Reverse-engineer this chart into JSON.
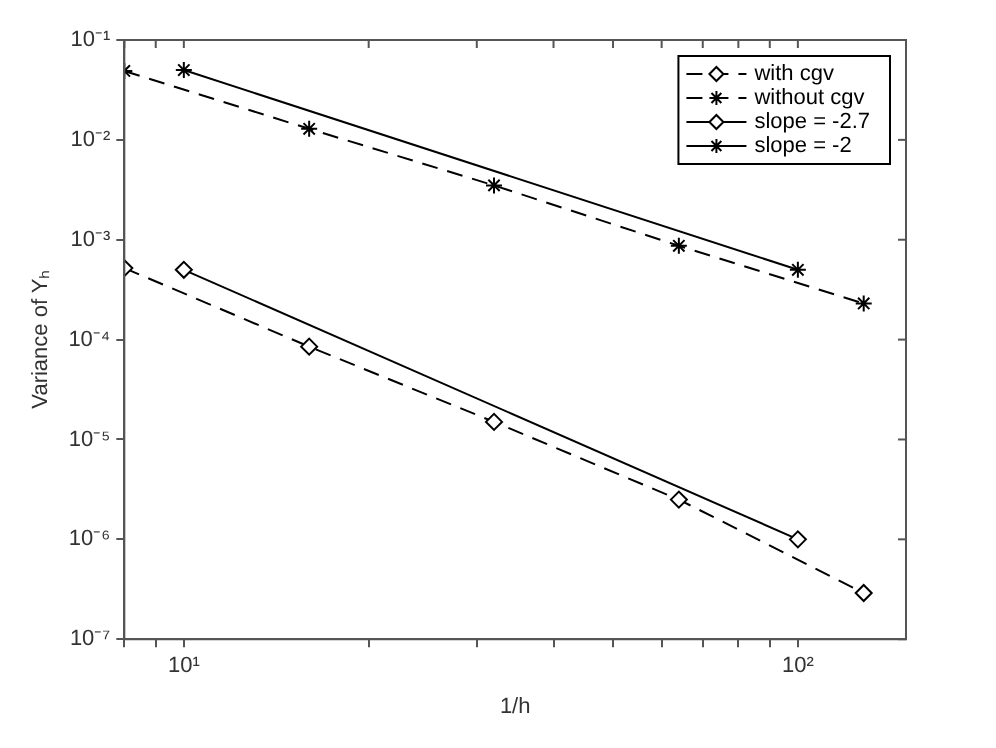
{
  "chart_data": {
    "type": "line",
    "xlabel": "1/h",
    "ylabel": "Variance of Yₕ",
    "log": "xy",
    "grid": false,
    "legend": "top right",
    "xlim": [
      8,
      150
    ],
    "ylim": [
      1e-07,
      0.1
    ],
    "xticks": [
      {
        "value": 8,
        "label": null
      },
      {
        "value": 9,
        "label": null
      },
      {
        "value": 10,
        "label": "10¹"
      },
      {
        "value": 20,
        "label": null
      },
      {
        "value": 30,
        "label": null
      },
      {
        "value": 40,
        "label": null
      },
      {
        "value": 50,
        "label": null
      },
      {
        "value": 60,
        "label": null
      },
      {
        "value": 70,
        "label": null
      },
      {
        "value": 80,
        "label": null
      },
      {
        "value": 90,
        "label": null
      },
      {
        "value": 100,
        "label": "10²"
      }
    ],
    "yticks": [
      {
        "value": 1e-07,
        "label": "10⁻⁷"
      },
      {
        "value": 1e-06,
        "label": "10⁻⁶"
      },
      {
        "value": 1e-05,
        "label": "10⁻⁵"
      },
      {
        "value": 0.0001,
        "label": "10⁻⁴"
      },
      {
        "value": 0.001,
        "label": "10⁻³"
      },
      {
        "value": 0.01,
        "label": "10⁻²"
      },
      {
        "value": 0.1,
        "label": "10⁻¹"
      }
    ],
    "series": [
      {
        "name": "with cgv",
        "color": "#000000",
        "marker": "diamond",
        "line_style": "dashed",
        "x": [
          8,
          16,
          32,
          64,
          128
        ],
        "values": [
          0.00052,
          8.5e-05,
          1.5e-05,
          2.5e-06,
          2.9e-07
        ]
      },
      {
        "name": "without cgv",
        "color": "#000000",
        "marker": "cross",
        "line_style": "dashed",
        "x": [
          8,
          16,
          32,
          64,
          128
        ],
        "values": [
          0.049,
          0.0129,
          0.0035,
          0.00087,
          0.00023
        ]
      },
      {
        "name": "slope = -2.7",
        "color": "#000000",
        "marker": "diamond",
        "line_style": "solid",
        "x": [
          10,
          100
        ],
        "values": [
          0.0005,
          1e-06
        ]
      },
      {
        "name": "slope = -2",
        "color": "#000000",
        "marker": "cross",
        "line_style": "solid",
        "x": [
          10,
          100
        ],
        "values": [
          0.05,
          0.0005
        ]
      }
    ]
  }
}
